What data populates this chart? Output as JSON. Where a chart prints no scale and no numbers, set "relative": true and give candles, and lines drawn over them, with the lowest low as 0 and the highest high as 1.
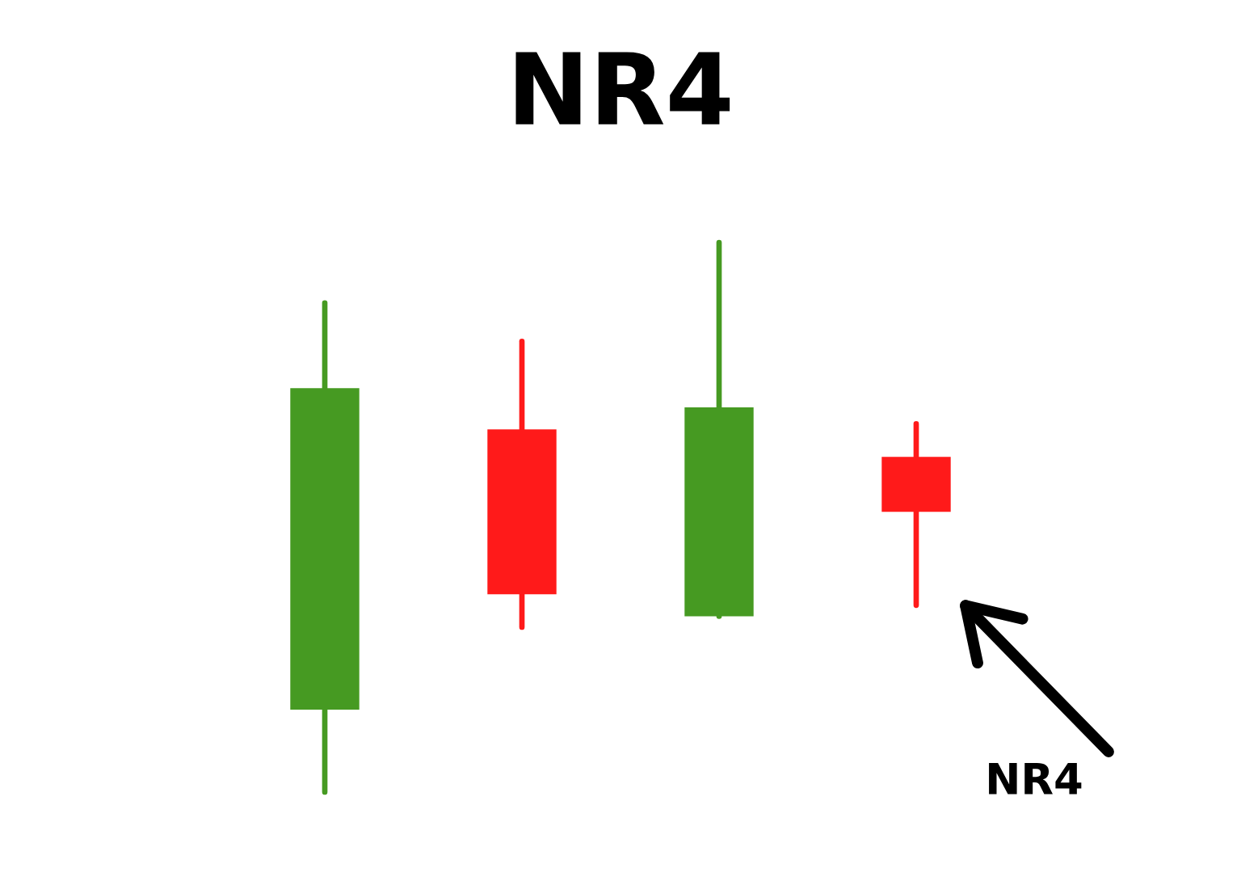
{
  "chart_data": {
    "type": "candlestick",
    "title": "NR4",
    "relative": true,
    "categories": [
      null,
      null,
      null,
      null
    ],
    "ohlc": [
      [
        0.15,
        0.89,
        0.0,
        0.735
      ],
      [
        0.66,
        0.82,
        0.3,
        0.36
      ],
      [
        0.32,
        1.0,
        0.32,
        0.7
      ],
      [
        0.61,
        0.67,
        0.34,
        0.51
      ]
    ],
    "colors": [
      "#469a22",
      "#ff1a1a",
      "#469a22",
      "#ff1a1a"
    ],
    "annotations": [
      "NR4"
    ]
  }
}
